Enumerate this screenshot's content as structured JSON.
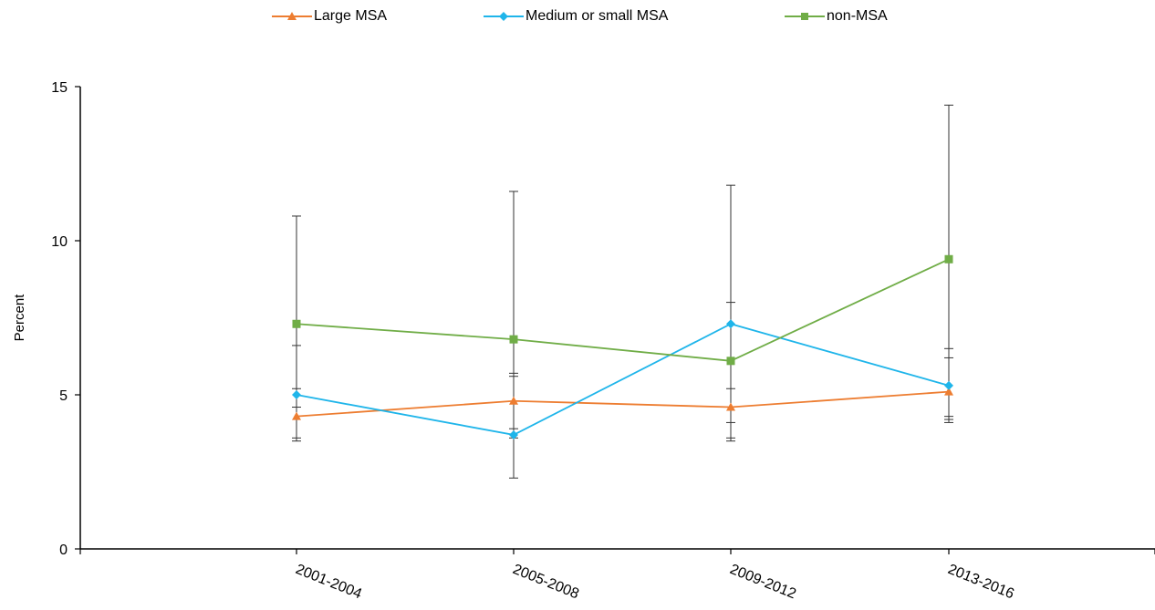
{
  "chart_data": {
    "type": "line",
    "title": "",
    "xlabel": "",
    "ylabel": "Percent",
    "categories": [
      "2001-2004",
      "2005-2008",
      "2009-2012",
      "2013-2016"
    ],
    "ylim": [
      0,
      15
    ],
    "yticks": [
      0,
      5,
      10,
      15
    ],
    "grid": false,
    "legend_position": "top",
    "series": [
      {
        "name": "Large MSA",
        "color": "#ED7D31",
        "marker": "triangle",
        "values": [
          4.3,
          4.8,
          4.6,
          5.1
        ],
        "ci_low": [
          3.6,
          3.9,
          4.1,
          4.3
        ],
        "ci_high": [
          5.2,
          5.7,
          5.2,
          6.2
        ]
      },
      {
        "name": "Medium or small MSA",
        "color": "#1FB5EA",
        "marker": "diamond",
        "values": [
          5.0,
          3.7,
          7.3,
          5.3
        ],
        "ci_low": [
          3.5,
          2.3,
          3.5,
          4.1
        ],
        "ci_high": [
          6.6,
          5.6,
          8.0,
          6.5
        ]
      },
      {
        "name": "non-MSA",
        "color": "#70AD47",
        "marker": "square",
        "values": [
          7.3,
          6.8,
          6.1,
          9.4
        ],
        "ci_low": [
          4.6,
          3.6,
          3.6,
          4.2
        ],
        "ci_high": [
          10.8,
          11.6,
          11.8,
          14.4
        ]
      }
    ]
  }
}
